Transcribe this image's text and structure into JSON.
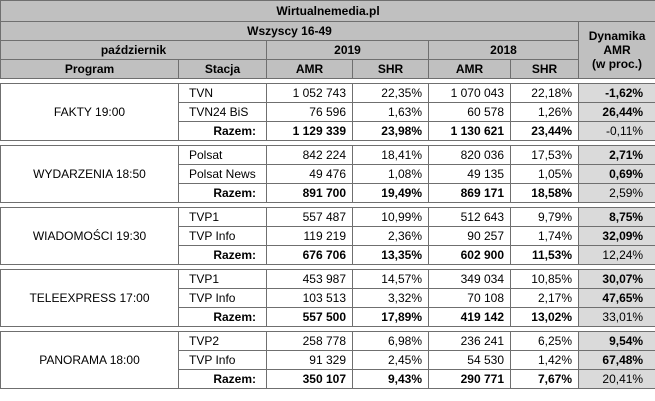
{
  "header": {
    "site": "Wirtualnemedia.pl",
    "target": "Wszyscy 16-49",
    "month": "październik",
    "year_a": "2019",
    "year_b": "2018",
    "dynamics": [
      "Dynamika",
      "AMR",
      "(w proc.)"
    ],
    "col_program": "Program",
    "col_station": "Stacja",
    "col_amr": "AMR",
    "col_shr": "SHR"
  },
  "programs": [
    {
      "name": "FAKTY 19:00",
      "rows": [
        {
          "station": "TVN",
          "amr19": "1 052 743",
          "shr19": "22,35%",
          "amr18": "1 070 043",
          "shr18": "22,18%",
          "dyn": "-1,62%",
          "dyn_bold": true
        },
        {
          "station": "TVN24 BiS",
          "amr19": "76 596",
          "shr19": "1,63%",
          "amr18": "60 578",
          "shr18": "1,26%",
          "dyn": "26,44%",
          "dyn_bold": true
        }
      ],
      "total": {
        "label": "Razem:",
        "amr19": "1 129 339",
        "shr19": "23,98%",
        "amr18": "1 130 621",
        "shr18": "23,44%",
        "dyn": "-0,11%"
      }
    },
    {
      "name": "WYDARZENIA 18:50",
      "rows": [
        {
          "station": "Polsat",
          "amr19": "842 224",
          "shr19": "18,41%",
          "amr18": "820 036",
          "shr18": "17,53%",
          "dyn": "2,71%",
          "dyn_bold": true
        },
        {
          "station": "Polsat News",
          "amr19": "49 476",
          "shr19": "1,08%",
          "amr18": "49 135",
          "shr18": "1,05%",
          "dyn": "0,69%",
          "dyn_bold": true
        }
      ],
      "total": {
        "label": "Razem:",
        "amr19": "891 700",
        "shr19": "19,49%",
        "amr18": "869 171",
        "shr18": "18,58%",
        "dyn": "2,59%"
      }
    },
    {
      "name": "WIADOMOŚCI 19:30",
      "rows": [
        {
          "station": "TVP1",
          "amr19": "557 487",
          "shr19": "10,99%",
          "amr18": "512 643",
          "shr18": "9,79%",
          "dyn": "8,75%",
          "dyn_bold": true
        },
        {
          "station": "TVP Info",
          "amr19": "119 219",
          "shr19": "2,36%",
          "amr18": "90 257",
          "shr18": "1,74%",
          "dyn": "32,09%",
          "dyn_bold": true
        }
      ],
      "total": {
        "label": "Razem:",
        "amr19": "676 706",
        "shr19": "13,35%",
        "amr18": "602 900",
        "shr18": "11,53%",
        "dyn": "12,24%"
      }
    },
    {
      "name": "TELEEXPRESS 17:00",
      "rows": [
        {
          "station": "TVP1",
          "amr19": "453 987",
          "shr19": "14,57%",
          "amr18": "349 034",
          "shr18": "10,85%",
          "dyn": "30,07%",
          "dyn_bold": true
        },
        {
          "station": "TVP Info",
          "amr19": "103 513",
          "shr19": "3,32%",
          "amr18": "70 108",
          "shr18": "2,17%",
          "dyn": "47,65%",
          "dyn_bold": true
        }
      ],
      "total": {
        "label": "Razem:",
        "amr19": "557 500",
        "shr19": "17,89%",
        "amr18": "419 142",
        "shr18": "13,02%",
        "dyn": "33,01%"
      }
    },
    {
      "name": "PANORAMA 18:00",
      "rows": [
        {
          "station": "TVP2",
          "amr19": "258 778",
          "shr19": "6,98%",
          "amr18": "236 241",
          "shr18": "6,25%",
          "dyn": "9,54%",
          "dyn_bold": true
        },
        {
          "station": "TVP Info",
          "amr19": "91 329",
          "shr19": "2,45%",
          "amr18": "54 530",
          "shr18": "1,42%",
          "dyn": "67,48%",
          "dyn_bold": true
        }
      ],
      "total": {
        "label": "Razem:",
        "amr19": "350 107",
        "shr19": "9,43%",
        "amr18": "290 771",
        "shr18": "7,67%",
        "dyn": "20,41%"
      }
    }
  ]
}
